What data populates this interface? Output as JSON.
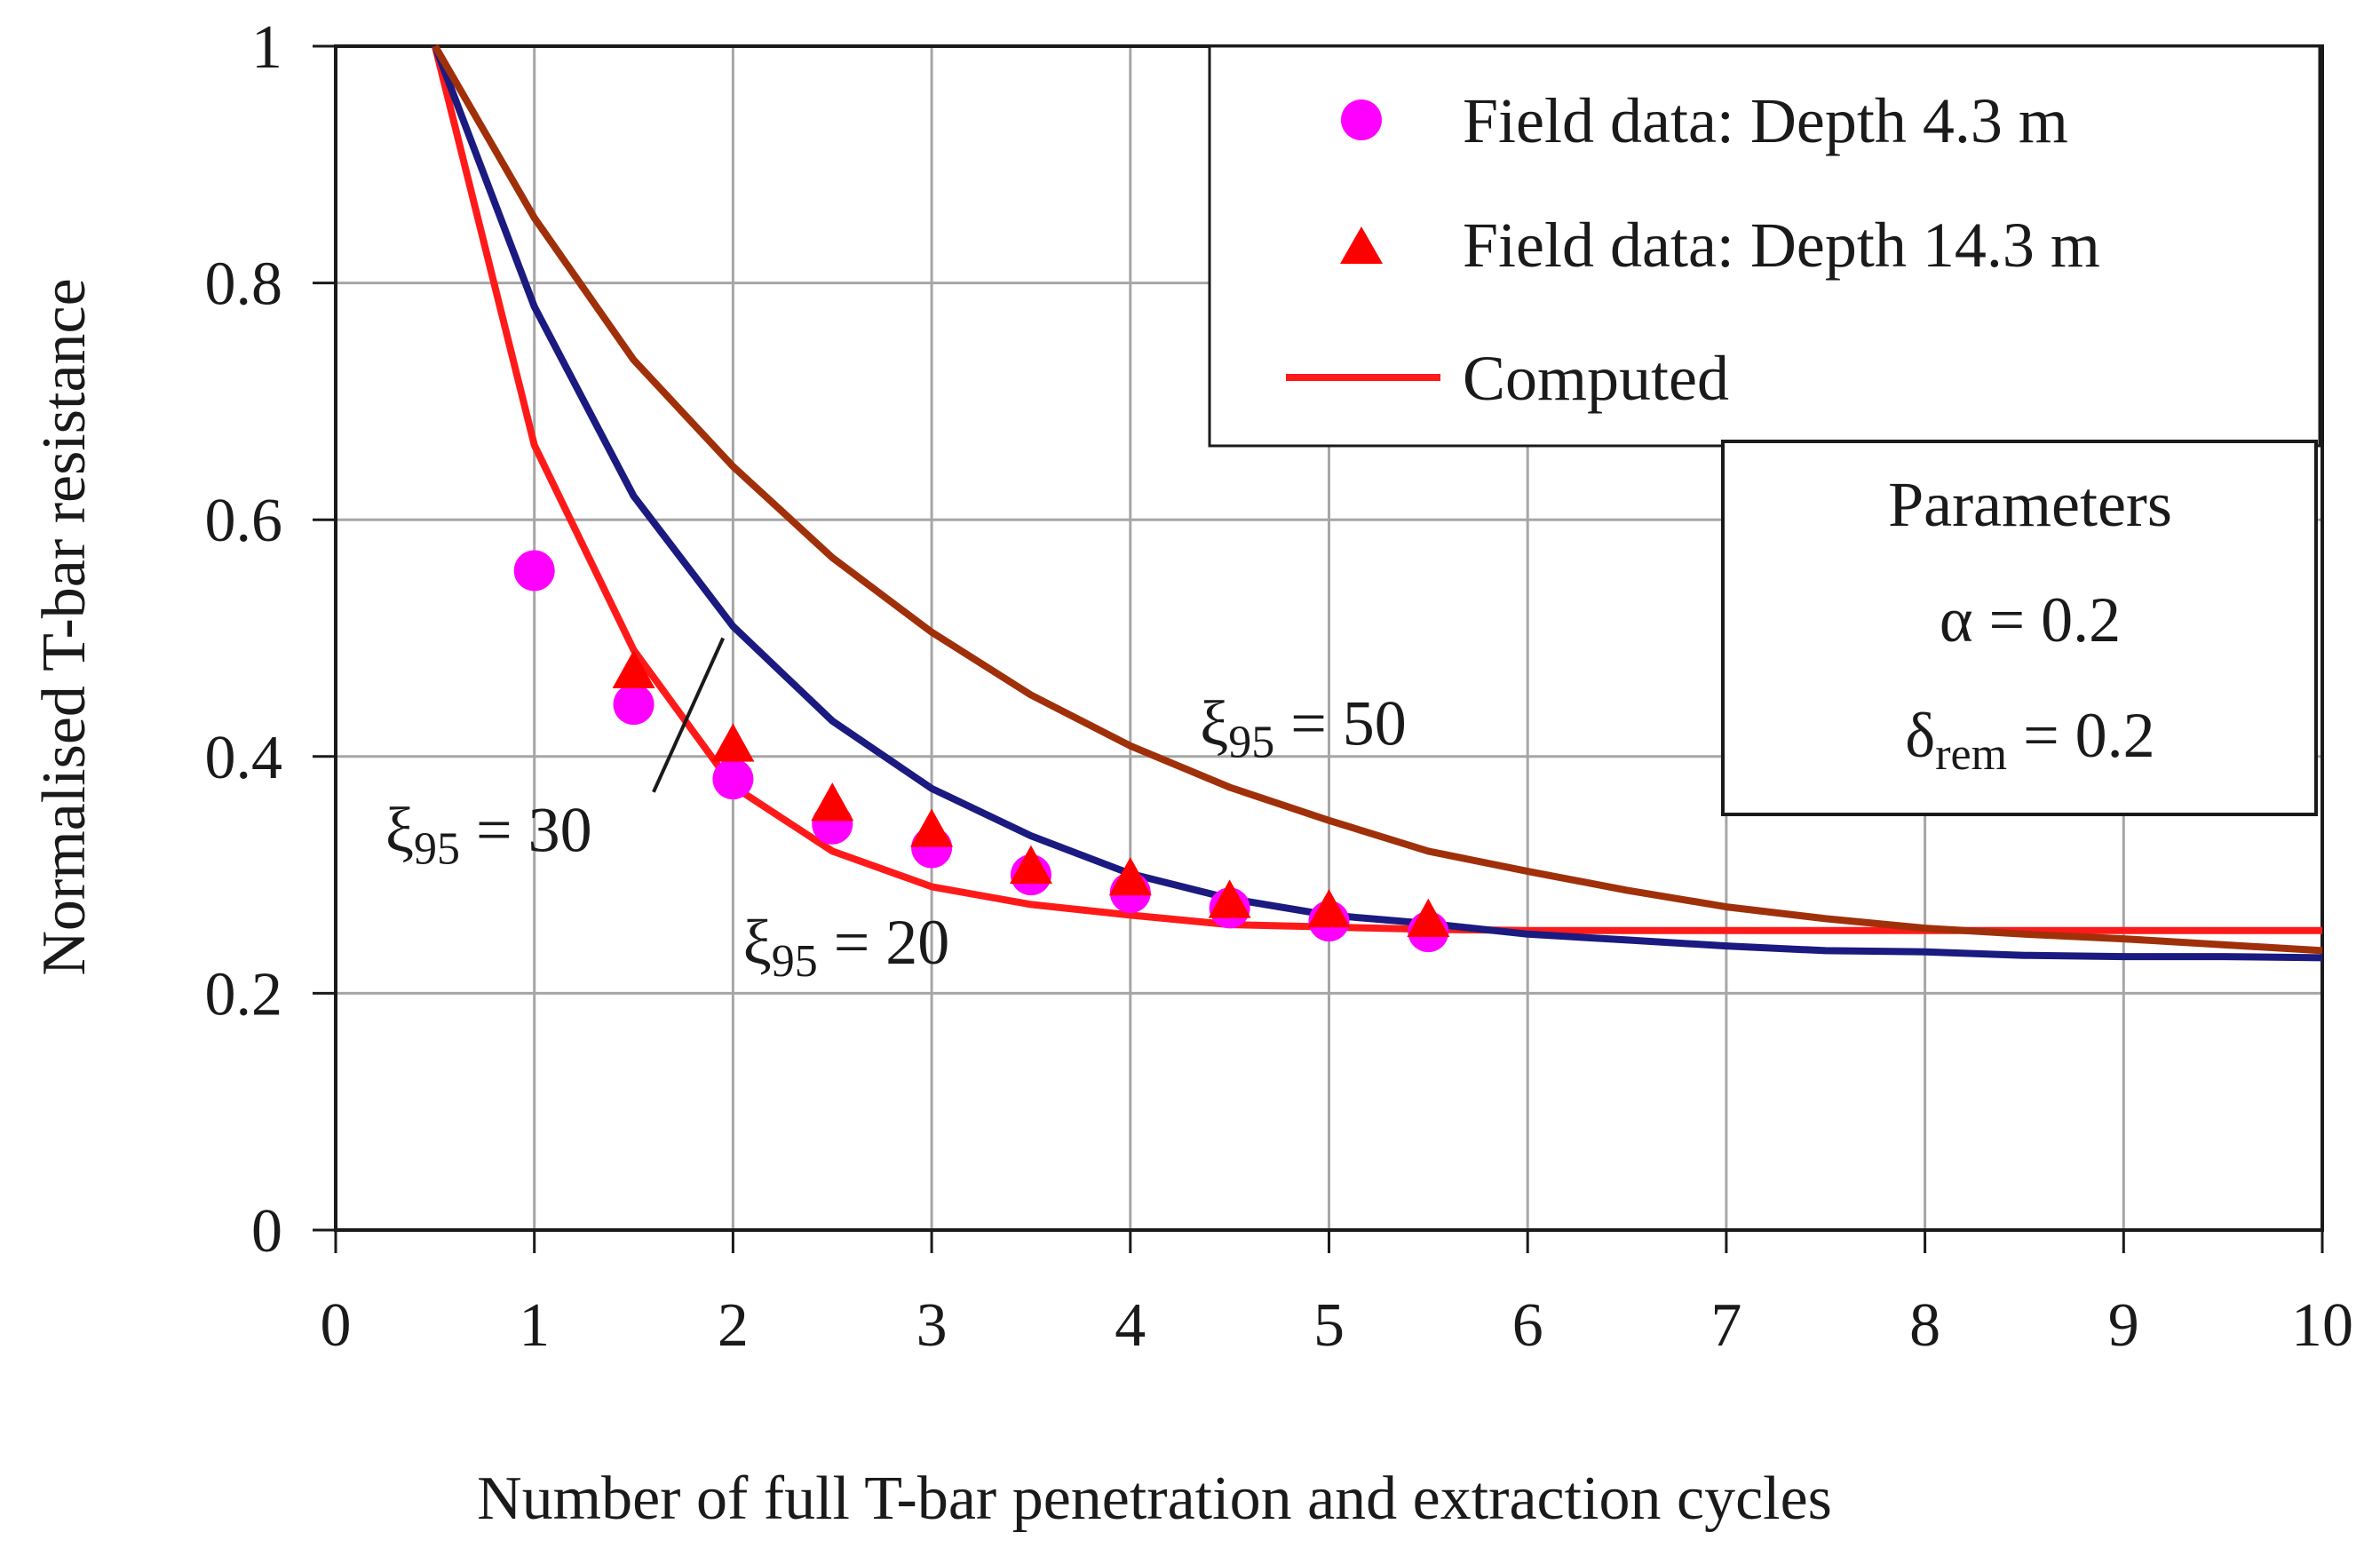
{
  "chart_data": {
    "type": "line",
    "title": "",
    "xlabel": "Number of full T-bar penetration and extraction cycles",
    "ylabel": "Normalised T-bar resistance",
    "xlim": [
      0,
      10
    ],
    "ylim": [
      0,
      1
    ],
    "xticks": [
      "0",
      "1",
      "2",
      "3",
      "4",
      "5",
      "6",
      "7",
      "8",
      "9",
      "10"
    ],
    "yticks": [
      "0",
      "0.2",
      "0.4",
      "0.6",
      "0.8",
      "1"
    ],
    "grid": true,
    "legend_position": "top-right",
    "legend": [
      {
        "label": "Field data: Depth 4.3 m",
        "marker": "circle",
        "color": "#ff00ff"
      },
      {
        "label": "Field data: Depth 14.3 m",
        "marker": "triangle",
        "color": "#ff0000"
      },
      {
        "label": "Computed",
        "marker": "line",
        "color": "#ff1a1a"
      }
    ],
    "series": [
      {
        "name": "Field data: Depth 4.3 m",
        "kind": "scatter",
        "marker": "circle",
        "color": "#ff00ff",
        "x": [
          1,
          1.5,
          2,
          2.5,
          3,
          3.5,
          4,
          4.5,
          5,
          5.5
        ],
        "y": [
          0.557,
          0.444,
          0.381,
          0.343,
          0.323,
          0.3,
          0.285,
          0.272,
          0.261,
          0.252
        ]
      },
      {
        "name": "Field data: Depth 14.3 m",
        "kind": "scatter",
        "marker": "triangle",
        "color": "#ff0000",
        "x": [
          1.5,
          2,
          2.5,
          3,
          3.5,
          4,
          4.5,
          5,
          5.5
        ],
        "y": [
          0.472,
          0.41,
          0.36,
          0.338,
          0.307,
          0.297,
          0.278,
          0.27,
          0.262
        ]
      },
      {
        "kind": "line",
        "color": "#ff1a1a",
        "x": [
          0.5,
          1,
          1.5,
          2,
          2.5,
          3,
          3.5,
          4,
          4.5,
          5,
          5.5,
          6,
          7,
          8,
          9,
          10
        ],
        "y": [
          1.0,
          0.663,
          0.49,
          0.375,
          0.32,
          0.29,
          0.275,
          0.266,
          0.258,
          0.256,
          0.254,
          0.253,
          0.253,
          0.253,
          0.253,
          0.253
        ]
      },
      {
        "kind": "line",
        "color": "#1a1a80",
        "x": [
          0.5,
          1,
          1.5,
          2,
          2.5,
          3,
          3.5,
          4,
          4.5,
          5,
          5.5,
          6,
          6.5,
          7,
          7.5,
          8,
          8.5,
          9,
          9.5,
          10
        ],
        "y": [
          1.0,
          0.78,
          0.62,
          0.51,
          0.43,
          0.373,
          0.333,
          0.301,
          0.28,
          0.266,
          0.259,
          0.25,
          0.245,
          0.24,
          0.236,
          0.235,
          0.232,
          0.231,
          0.231,
          0.23
        ]
      },
      {
        "kind": "line",
        "color": "#a0300a",
        "x": [
          0.5,
          1,
          1.5,
          2,
          2.5,
          3,
          3.5,
          4,
          4.5,
          5,
          5.5,
          6,
          6.5,
          7,
          7.5,
          8,
          8.5,
          9,
          9.5,
          10
        ],
        "y": [
          1.0,
          0.855,
          0.735,
          0.645,
          0.568,
          0.505,
          0.452,
          0.409,
          0.374,
          0.346,
          0.32,
          0.303,
          0.287,
          0.273,
          0.263,
          0.255,
          0.25,
          0.246,
          0.241,
          0.236
        ]
      }
    ],
    "annotations": [
      {
        "id": "xi50",
        "symbol": "ξ",
        "sub": "95",
        "text": " = 50",
        "x": 4.35,
        "y": 0.41
      },
      {
        "id": "xi30",
        "symbol": "ξ",
        "sub": "95",
        "text": " = 30",
        "x": 0.25,
        "y": 0.32
      },
      {
        "id": "xi20",
        "symbol": "ξ",
        "sub": "95",
        "text": " = 20",
        "x": 2.05,
        "y": 0.225
      }
    ],
    "parameters_box": {
      "title": "Parameters",
      "alpha": "α = 0.2",
      "delta_symbol": "δ",
      "delta_sub": "rem",
      "delta_value": " = 0.2"
    }
  }
}
